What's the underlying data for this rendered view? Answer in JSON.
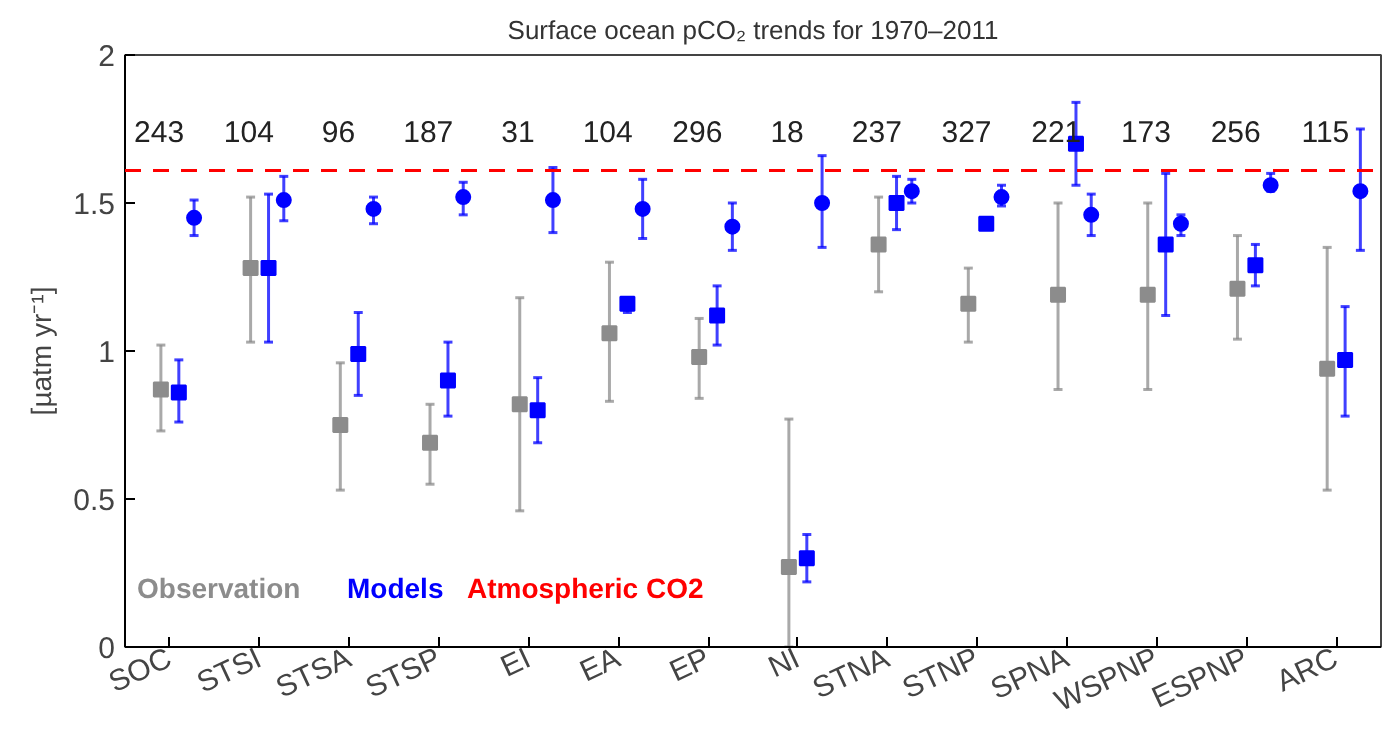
{
  "chart_data": {
    "type": "scatter",
    "title": "Surface ocean pCO₂ trends for 1970–2011",
    "ylabel": "[µatm yr⁻¹]",
    "categories": [
      "SOC",
      "STSI",
      "STSA",
      "STSP",
      "EI",
      "EA",
      "EP",
      "NI",
      "STNA",
      "STNP",
      "SPNA",
      "WSPNP",
      "ESPNP",
      "ARC"
    ],
    "ylim": [
      0,
      2
    ],
    "yticks": [
      0,
      0.5,
      1,
      1.5,
      2
    ],
    "grid": false,
    "legend": "bottom left",
    "series": [
      {
        "name": "Observation",
        "color": "#8c8c8c",
        "marker": "square",
        "values": [
          0.87,
          1.28,
          0.75,
          0.69,
          0.82,
          1.06,
          0.98,
          0.27,
          1.36,
          1.16,
          1.19,
          1.19,
          1.21,
          0.94
        ],
        "errors": [
          [
            0.73,
            1.02
          ],
          [
            1.03,
            1.52
          ],
          [
            0.53,
            0.96
          ],
          [
            0.55,
            0.82
          ],
          [
            0.46,
            1.18
          ],
          [
            0.83,
            1.3
          ],
          [
            0.84,
            1.11
          ],
          [
            0,
            0.77
          ],
          [
            1.2,
            1.52
          ],
          [
            1.03,
            1.28
          ],
          [
            0.87,
            1.5
          ],
          [
            0.87,
            1.5
          ],
          [
            1.04,
            1.39
          ],
          [
            0.53,
            1.35
          ]
        ]
      },
      {
        "name": "Models",
        "color": "#0000ff",
        "marker": "square",
        "values": [
          0.86,
          1.28,
          0.99,
          0.9,
          0.8,
          1.16,
          1.12,
          0.3,
          1.5,
          1.43,
          1.7,
          1.36,
          1.29,
          0.97
        ],
        "errors": [
          [
            0.76,
            0.97
          ],
          [
            1.03,
            1.53
          ],
          [
            0.85,
            1.13
          ],
          [
            0.78,
            1.03
          ],
          [
            0.69,
            0.91
          ],
          [
            1.13,
            1.18
          ],
          [
            1.02,
            1.22
          ],
          [
            0.22,
            0.38
          ],
          [
            1.41,
            1.59
          ],
          null,
          [
            1.56,
            1.84
          ],
          [
            1.12,
            1.6
          ],
          [
            1.22,
            1.36
          ],
          [
            0.78,
            1.15
          ]
        ]
      },
      {
        "color": "#0000ff",
        "marker": "circle",
        "values": [
          1.45,
          1.51,
          1.48,
          1.52,
          1.51,
          1.48,
          1.42,
          1.5,
          1.54,
          1.52,
          1.46,
          1.43,
          1.56,
          1.54
        ],
        "errors": [
          [
            1.39,
            1.51
          ],
          [
            1.44,
            1.59
          ],
          [
            1.43,
            1.52
          ],
          [
            1.46,
            1.57
          ],
          [
            1.4,
            1.62
          ],
          [
            1.38,
            1.58
          ],
          [
            1.34,
            1.5
          ],
          [
            1.35,
            1.66
          ],
          [
            1.5,
            1.58
          ],
          [
            1.49,
            1.56
          ],
          [
            1.39,
            1.53
          ],
          [
            1.39,
            1.46
          ],
          [
            1.54,
            1.6
          ],
          [
            1.34,
            1.75
          ]
        ]
      }
    ],
    "ref_lines": [
      {
        "axis": "y",
        "value": 1.61,
        "label": "Atmospheric CO2",
        "color": "#ff0000",
        "line_style": "dashed"
      }
    ],
    "annotations": [
      "243",
      "104",
      "96",
      "187",
      "31",
      "104",
      "296",
      "18",
      "237",
      "327",
      "221",
      "173",
      "256",
      "115"
    ]
  }
}
